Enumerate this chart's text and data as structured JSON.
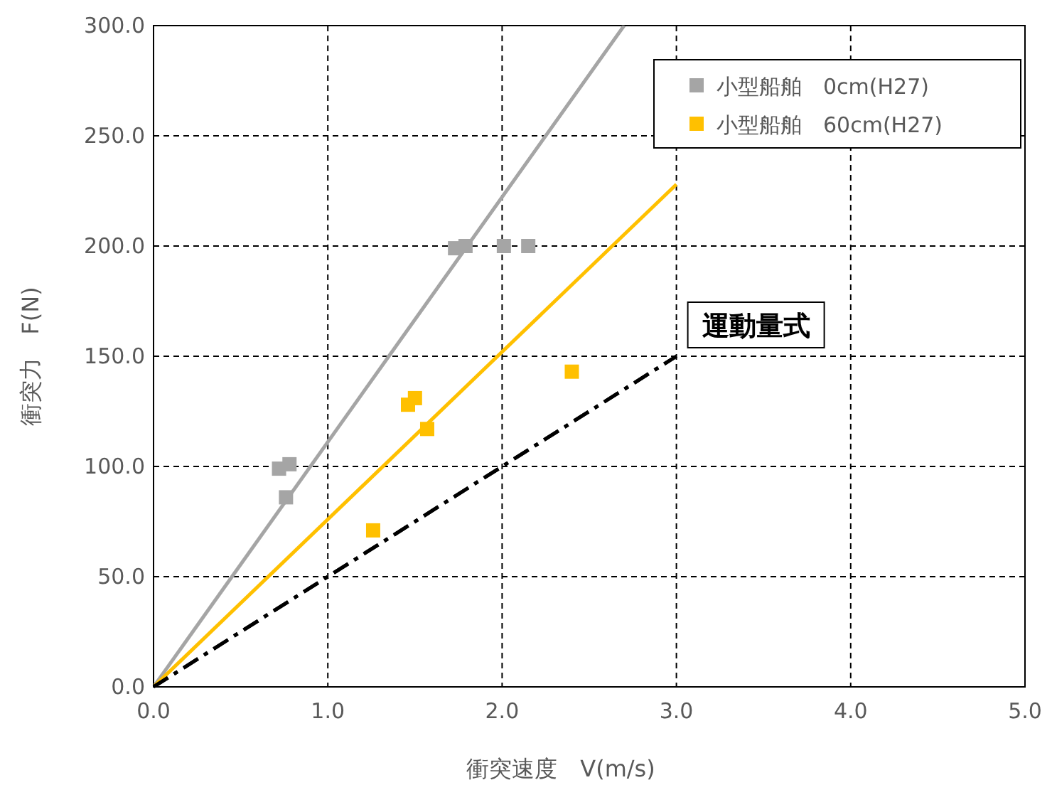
{
  "chart_data": {
    "type": "scatter",
    "xlabel": "衝突速度　V(m/s)",
    "ylabel": "衝突力　F(N)",
    "xlim": [
      0,
      5
    ],
    "ylim": [
      0,
      300
    ],
    "xticks": [
      {
        "value": 0,
        "label": "0.0"
      },
      {
        "value": 1,
        "label": "1.0"
      },
      {
        "value": 2,
        "label": "2.0"
      },
      {
        "value": 3,
        "label": "3.0"
      },
      {
        "value": 4,
        "label": "4.0"
      },
      {
        "value": 5,
        "label": "5.0"
      }
    ],
    "yticks": [
      {
        "value": 0,
        "label": "0.0"
      },
      {
        "value": 50,
        "label": "50.0"
      },
      {
        "value": 100,
        "label": "100.0"
      },
      {
        "value": 150,
        "label": "150.0"
      },
      {
        "value": 200,
        "label": "200.0"
      },
      {
        "value": 250,
        "label": "250.0"
      },
      {
        "value": 300,
        "label": "300.0"
      }
    ],
    "grid": true,
    "legend": "top right",
    "series": [
      {
        "name": "小型船舶　0cm(H27)",
        "marker": "square",
        "color": "#a5a5a5",
        "x": [
          0.72,
          0.78,
          0.76,
          1.73,
          1.79,
          2.01,
          2.15
        ],
        "values": [
          99,
          101,
          86,
          199,
          200,
          200,
          200
        ]
      },
      {
        "name": "小型船舶　60cm(H27)",
        "marker": "square",
        "color": "#ffc000",
        "x": [
          1.26,
          1.46,
          1.5,
          1.57,
          2.4
        ],
        "values": [
          71,
          128,
          131,
          117,
          143
        ]
      },
      {
        "type": "line",
        "color": "#a5a5a5",
        "x": [
          0,
          2.7
        ],
        "values": [
          0,
          300
        ],
        "line_style": "solid",
        "marker": "none"
      },
      {
        "type": "line",
        "color": "#ffc000",
        "x": [
          0,
          3.0
        ],
        "values": [
          0,
          228
        ],
        "line_style": "solid",
        "marker": "none"
      },
      {
        "name": "運動量式",
        "type": "line",
        "color": "#000000",
        "x": [
          0,
          3.0
        ],
        "values": [
          0,
          150
        ],
        "line_style": "dashed",
        "marker": "none"
      }
    ]
  }
}
